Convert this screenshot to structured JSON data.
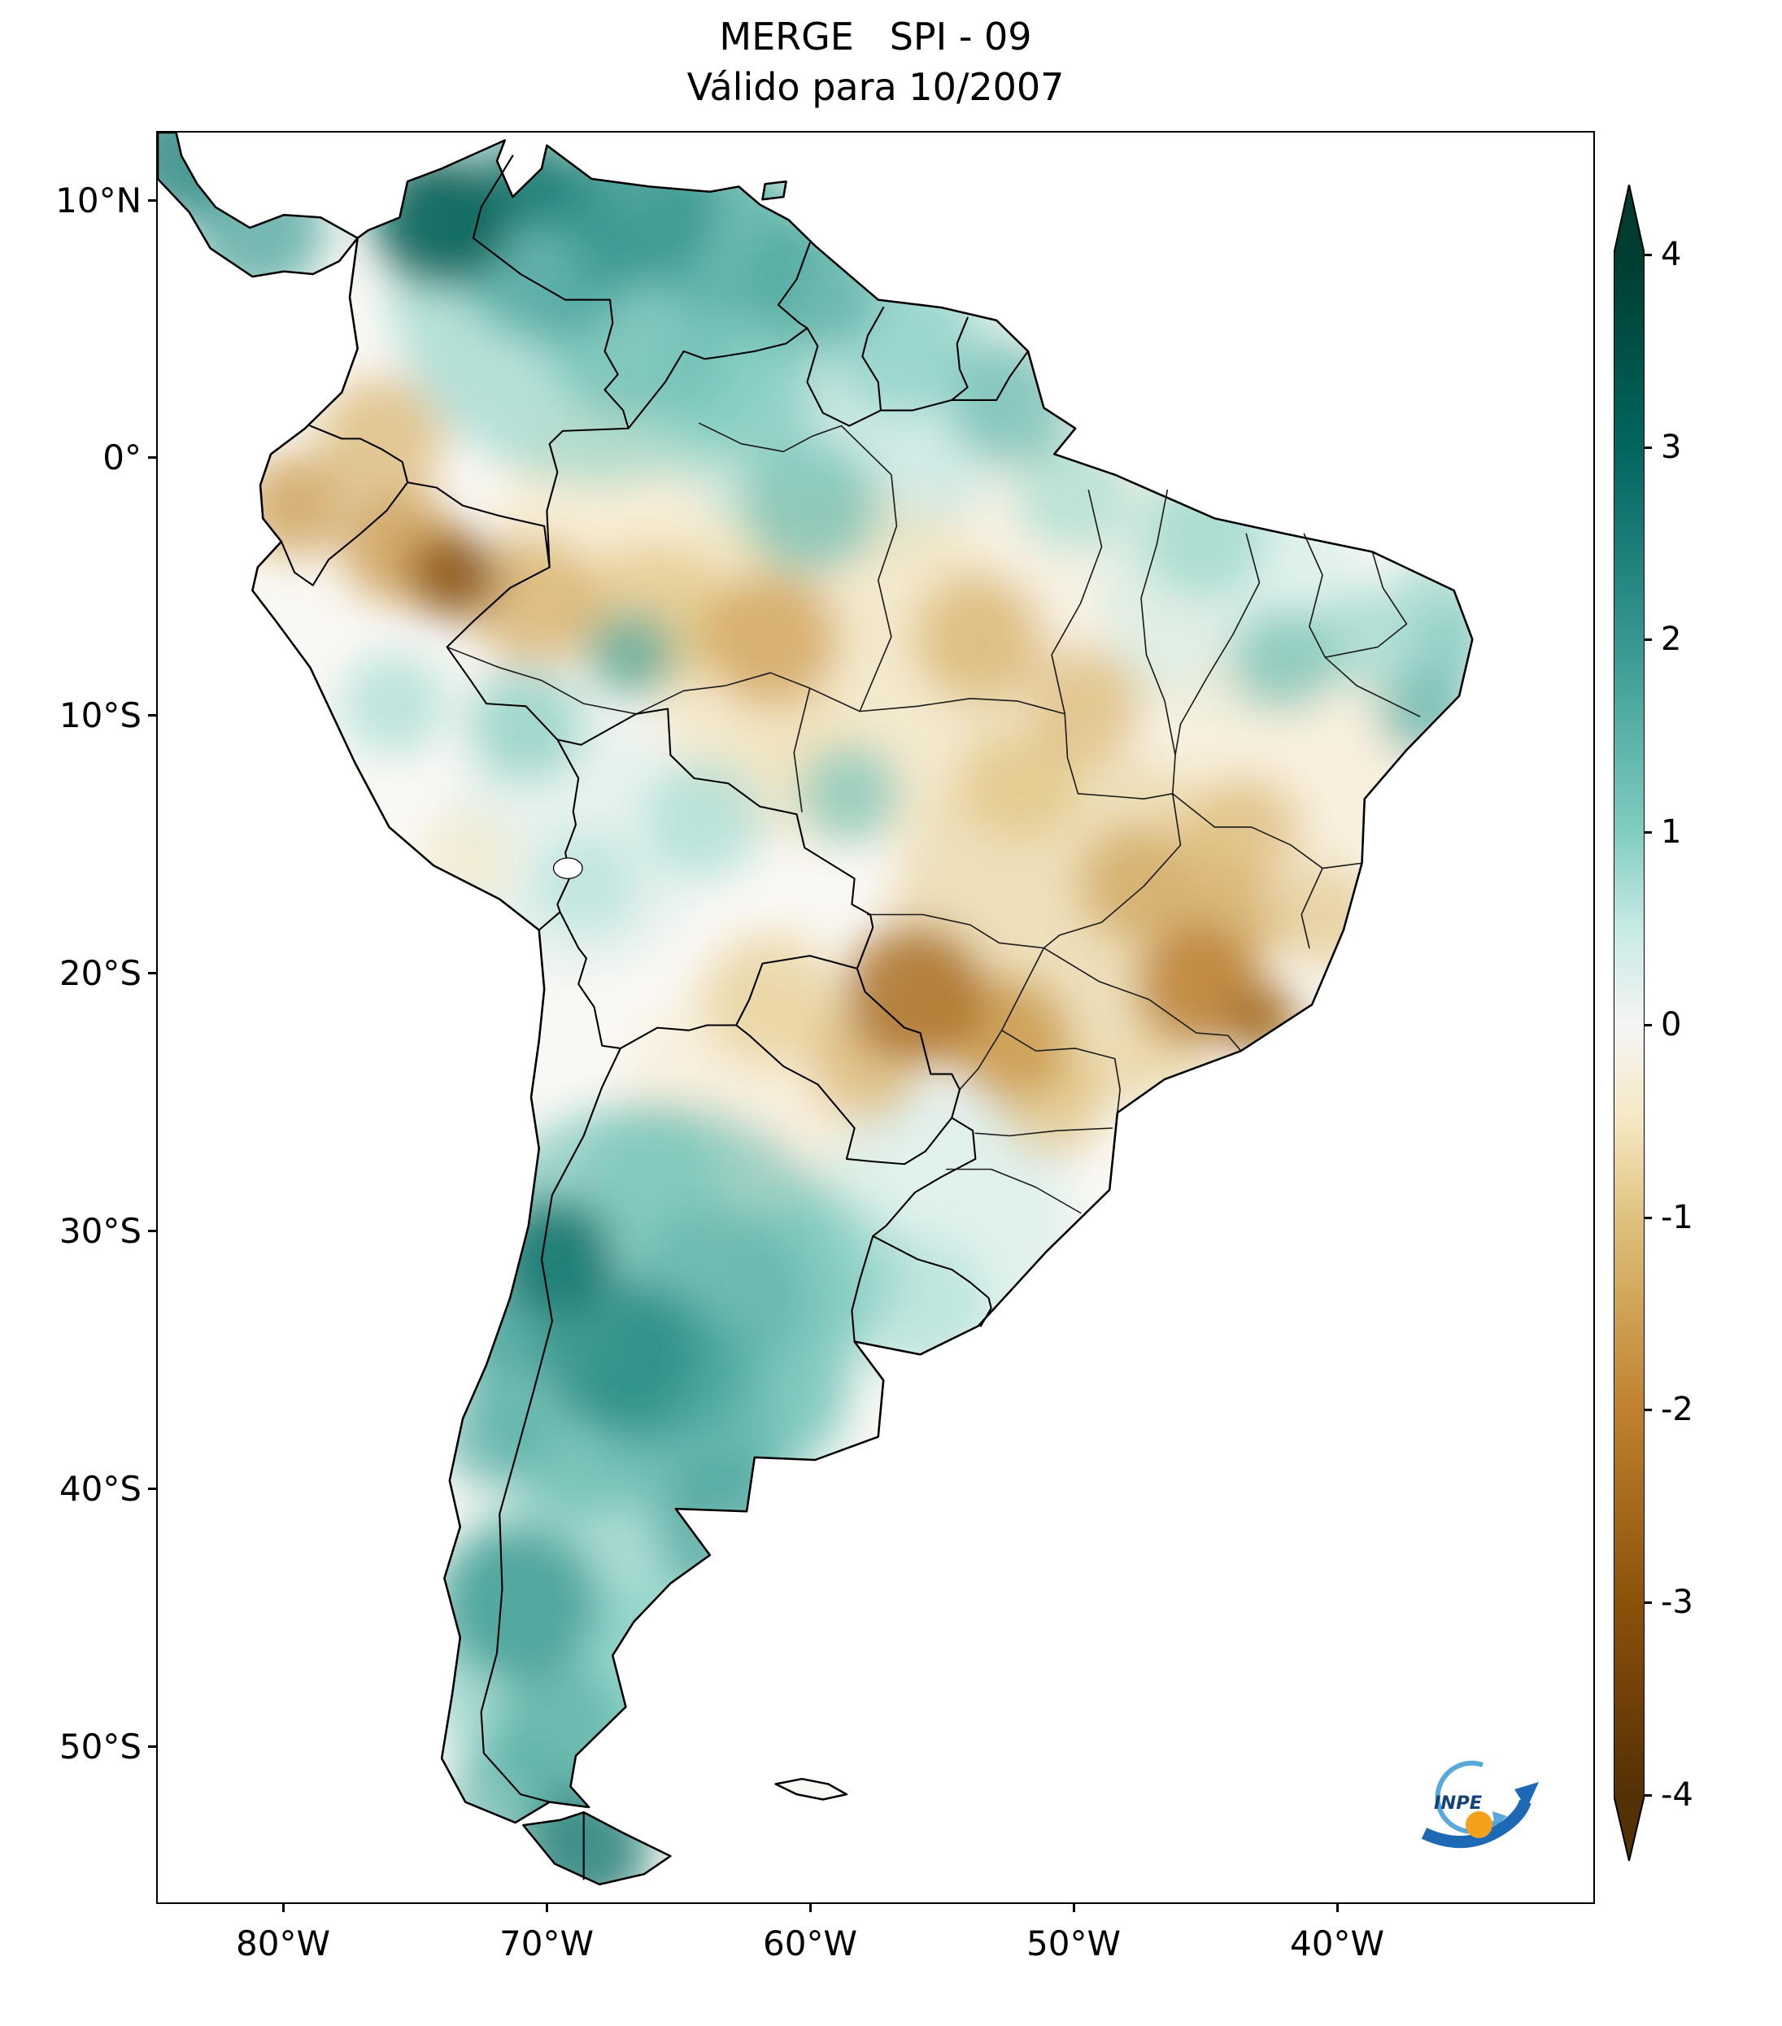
{
  "title": "MERGE   SPI - 09",
  "subtitle": "Válido para 10/2007",
  "axes": {
    "lat_ticks": [
      "10°N",
      "0°",
      "10°S",
      "20°S",
      "30°S",
      "40°S",
      "50°S"
    ],
    "lon_ticks": [
      "80°W",
      "70°W",
      "60°W",
      "50°W",
      "40°W"
    ]
  },
  "colorbar": {
    "ticks": [
      "4",
      "3",
      "2",
      "1",
      "0",
      "-1",
      "-2",
      "-3",
      "-4"
    ]
  },
  "logo": {
    "label": "INPE"
  },
  "chart_data": {
    "type": "heatmap",
    "title": "MERGE   SPI - 09",
    "subtitle": "Válido para 10/2007",
    "product": "MERGE",
    "index": "SPI-09",
    "valid_for": "10/2007",
    "region": "South America",
    "projection": "PlateCarree",
    "lon_range": [
      -84.8,
      -30.2
    ],
    "lat_range": [
      -56.1,
      12.7
    ],
    "x_ticks": [
      "80°W",
      "70°W",
      "60°W",
      "50°W",
      "40°W"
    ],
    "y_ticks": [
      "10°N",
      "0°",
      "10°S",
      "20°S",
      "30°S",
      "40°S",
      "50°S"
    ],
    "grid": false,
    "colorbar": {
      "range": [
        -4,
        4
      ],
      "ticks": [
        4,
        3,
        2,
        1,
        0,
        -1,
        -2,
        -3,
        -4
      ],
      "extend": "both",
      "colormap": "BrBG",
      "scale": [
        {
          "v": 4,
          "c": "#003c30"
        },
        {
          "v": 3,
          "c": "#01665e"
        },
        {
          "v": 2,
          "c": "#35978f"
        },
        {
          "v": 1,
          "c": "#80cdc1"
        },
        {
          "v": 0.5,
          "c": "#c7eae5"
        },
        {
          "v": 0,
          "c": "#f5f5f5"
        },
        {
          "v": -0.5,
          "c": "#f6e8c3"
        },
        {
          "v": -1,
          "c": "#dfc27d"
        },
        {
          "v": -2,
          "c": "#bf812d"
        },
        {
          "v": -3,
          "c": "#8c510a"
        },
        {
          "v": -4,
          "c": "#543005"
        }
      ]
    },
    "anomaly_regions": [
      {
        "name": "north-wash",
        "lon": -68,
        "lat": 7,
        "radius_deg": 8,
        "spi": 0.9
      },
      {
        "name": "guiana-wash",
        "lon": -59,
        "lat": 3,
        "radius_deg": 7,
        "spi": 0.6
      },
      {
        "name": "west-amazon-wash",
        "lon": -66,
        "lat": -3,
        "radius_deg": 6,
        "spi": -0.5
      },
      {
        "name": "south-amazon-wash",
        "lon": -59,
        "lat": -8,
        "radius_deg": 7,
        "spi": -0.6
      },
      {
        "name": "east-amazon-wash",
        "lon": -50,
        "lat": -5,
        "radius_deg": 6,
        "spi": -0.3
      },
      {
        "name": "maranhao-wash",
        "lon": -44,
        "lat": -5,
        "radius_deg": 5,
        "spi": 0.4
      },
      {
        "name": "central-brazil-wash",
        "lon": -50,
        "lat": -18,
        "radius_deg": 7,
        "spi": -0.8
      },
      {
        "name": "bahia-wash",
        "lon": -42,
        "lat": -12,
        "radius_deg": 5,
        "spi": -0.4
      },
      {
        "name": "argentina-wash",
        "lon": -66,
        "lat": -33,
        "radius_deg": 8,
        "spi": 1.2
      },
      {
        "name": "patagonia-wash",
        "lon": -69,
        "lat": -46,
        "radius_deg": 6,
        "spi": 1.0
      },
      {
        "name": "chaco-wash",
        "lon": -62,
        "lat": -25,
        "radius_deg": 5,
        "spi": -0.4
      },
      {
        "name": "altiplano-wash",
        "lon": -69,
        "lat": -15,
        "radius_deg": 5,
        "spi": 0.3
      },
      {
        "name": "rio-grande-wash",
        "lon": -55,
        "lat": -29.5,
        "radius_deg": 5,
        "spi": 0.4
      },
      {
        "name": "nw-venezuela",
        "lon": -74,
        "lat": 9.3,
        "radius_deg": 2.6,
        "spi": 3.2
      },
      {
        "name": "coro-coast",
        "lon": -70.5,
        "lat": 10.8,
        "radius_deg": 1.8,
        "spi": 2.6
      },
      {
        "name": "maracaibo-east",
        "lon": -70,
        "lat": 8,
        "radius_deg": 3.4,
        "spi": 1.8
      },
      {
        "name": "caracas-coast",
        "lon": -66.5,
        "lat": 9.8,
        "radius_deg": 3,
        "spi": 2.1
      },
      {
        "name": "ne-venezuela",
        "lon": -63,
        "lat": 8.5,
        "radius_deg": 3.2,
        "spi": 1.6
      },
      {
        "name": "orinoco",
        "lon": -66.5,
        "lat": 5,
        "radius_deg": 3.6,
        "spi": 1.3
      },
      {
        "name": "guyana-coast",
        "lon": -60,
        "lat": 6.8,
        "radius_deg": 2.6,
        "spi": 1.7
      },
      {
        "name": "suriname",
        "lon": -56.5,
        "lat": 4.5,
        "radius_deg": 2.8,
        "spi": 1.0
      },
      {
        "name": "amapa",
        "lon": -52.3,
        "lat": 2.2,
        "radius_deg": 2.4,
        "spi": 1.4
      },
      {
        "name": "north-amazon",
        "lon": -60,
        "lat": -1.8,
        "radius_deg": 2.6,
        "spi": 1.3
      },
      {
        "name": "rio-branco",
        "lon": -62.5,
        "lat": 2.5,
        "radius_deg": 2.8,
        "spi": 1.1
      },
      {
        "name": "south-colombia",
        "lon": -76.3,
        "lat": 0.8,
        "radius_deg": 2.4,
        "spi": -1.3
      },
      {
        "name": "ecuador-coast",
        "lon": -79.6,
        "lat": -1.8,
        "radius_deg": 2,
        "spi": -1.7
      },
      {
        "name": "nw-peru-amazon",
        "lon": -73.5,
        "lat": -4.5,
        "radius_deg": 1.7,
        "spi": -3.1
      },
      {
        "name": "napo",
        "lon": -75.6,
        "lat": -3.4,
        "radius_deg": 2.2,
        "spi": -1.8
      },
      {
        "name": "west-amazonas",
        "lon": -70.5,
        "lat": -5.5,
        "radius_deg": 2.5,
        "spi": -1.4
      },
      {
        "name": "mid-amazonas",
        "lon": -66,
        "lat": -6,
        "radius_deg": 2.8,
        "spi": -1.0
      },
      {
        "name": "madeira",
        "lon": -61.5,
        "lat": -7,
        "radius_deg": 2.6,
        "spi": -1.6
      },
      {
        "name": "lower-amazon",
        "lon": -53.5,
        "lat": -7,
        "radius_deg": 2.5,
        "spi": -1.3
      },
      {
        "name": "araguaia-north",
        "lon": -49.5,
        "lat": -9.5,
        "radius_deg": 2.2,
        "spi": -1.2
      },
      {
        "name": "purus-teal",
        "lon": -66.8,
        "lat": -7.6,
        "radius_deg": 1.7,
        "spi": 1.7
      },
      {
        "name": "acre-teal",
        "lon": -70.8,
        "lat": -10.3,
        "radius_deg": 2.2,
        "spi": 1.1
      },
      {
        "name": "peru-coast-teal",
        "lon": -75.8,
        "lat": -9.5,
        "radius_deg": 2,
        "spi": 0.8
      },
      {
        "name": "beni-teal",
        "lon": -64,
        "lat": -14,
        "radius_deg": 2.3,
        "spi": 0.8
      },
      {
        "name": "guapore-teal",
        "lon": -58.5,
        "lat": -13,
        "radius_deg": 1.9,
        "spi": 1.2
      },
      {
        "name": "rondonia-tan",
        "lon": -60.5,
        "lat": -10.5,
        "radius_deg": 2,
        "spi": -0.6
      },
      {
        "name": "xingu-tan",
        "lon": -52,
        "lat": -12.5,
        "radius_deg": 2.3,
        "spi": -1.0
      },
      {
        "name": "goias-brown",
        "lon": -47.5,
        "lat": -16.5,
        "radius_deg": 2.3,
        "spi": -1.5
      },
      {
        "name": "mato-grosso-sul-brown",
        "lon": -56,
        "lat": -20.8,
        "radius_deg": 2.7,
        "spi": -2.5
      },
      {
        "name": "parana-river-brown",
        "lon": -52.5,
        "lat": -22.5,
        "radius_deg": 2.4,
        "spi": -1.8
      },
      {
        "name": "minas-brown",
        "lon": -45.2,
        "lat": -20.5,
        "radius_deg": 2.4,
        "spi": -2.2
      },
      {
        "name": "rio-spot-brown",
        "lon": -42.8,
        "lat": -21.8,
        "radius_deg": 1.4,
        "spi": -2.7
      },
      {
        "name": "espinhaco-brown",
        "lon": -44,
        "lat": -18,
        "radius_deg": 2,
        "spi": -1.4
      },
      {
        "name": "bahia-interior",
        "lon": -43.5,
        "lat": -14.5,
        "radius_deg": 2.2,
        "spi": -1.2
      },
      {
        "name": "mucuri",
        "lon": -40.3,
        "lat": -17.8,
        "radius_deg": 2,
        "spi": -1.0
      },
      {
        "name": "chaco-brown",
        "lon": -61.5,
        "lat": -21,
        "radius_deg": 2.6,
        "spi": -0.9
      },
      {
        "name": "east-paraguay-brown",
        "lon": -57.8,
        "lat": -23.5,
        "radius_deg": 2.2,
        "spi": -1.3
      },
      {
        "name": "parana-state-brown",
        "lon": -50.8,
        "lat": -25,
        "radius_deg": 2.1,
        "spi": -1.1
      },
      {
        "name": "sao-paulo-coast",
        "lon": -46.5,
        "lat": -23.5,
        "radius_deg": 2,
        "spi": -0.6
      },
      {
        "name": "piaui-teal",
        "lon": -42,
        "lat": -7.8,
        "radius_deg": 2,
        "spi": 1.3
      },
      {
        "name": "cariri-teal",
        "lon": -38.8,
        "lat": -7,
        "radius_deg": 2,
        "spi": 0.9
      },
      {
        "name": "paraiba-coast-teal",
        "lon": -35.5,
        "lat": -7.3,
        "radius_deg": 1.5,
        "spi": 1.2
      },
      {
        "name": "sergipe-teal",
        "lon": -36.6,
        "lat": -9.8,
        "radius_deg": 1.8,
        "spi": 1.6
      },
      {
        "name": "rn-coast-teal",
        "lon": -36,
        "lat": -5.3,
        "radius_deg": 1.8,
        "spi": 0.9
      },
      {
        "name": "maranhao-coast-teal",
        "lon": -45,
        "lat": -3,
        "radius_deg": 2.4,
        "spi": 0.9
      },
      {
        "name": "marajo-teal",
        "lon": -50,
        "lat": -1.3,
        "radius_deg": 2.3,
        "spi": 0.8
      },
      {
        "name": "andes-cuyo-dark",
        "lon": -69.7,
        "lat": -31,
        "radius_deg": 2.3,
        "spi": 2.8
      },
      {
        "name": "mendoza-south",
        "lon": -67.3,
        "lat": -34.8,
        "radius_deg": 3,
        "spi": 2.2
      },
      {
        "name": "san-luis",
        "lon": -65.5,
        "lat": -35.5,
        "radius_deg": 3,
        "spi": 1.8
      },
      {
        "name": "cordoba",
        "lon": -63.5,
        "lat": -32.5,
        "radius_deg": 3.4,
        "spi": 1.5
      },
      {
        "name": "entre-rios",
        "lon": -59.5,
        "lat": -31.5,
        "radius_deg": 3,
        "spi": 0.9
      },
      {
        "name": "uruguay-teal",
        "lon": -56,
        "lat": -33,
        "radius_deg": 2.8,
        "spi": 0.7
      },
      {
        "name": "buenos-aires-west",
        "lon": -61.5,
        "lat": -36.5,
        "radius_deg": 3,
        "spi": 1.1
      },
      {
        "name": "la-pampa",
        "lon": -64.5,
        "lat": -37.5,
        "radius_deg": 3.4,
        "spi": 1.4
      },
      {
        "name": "rio-negro-teal",
        "lon": -63,
        "lat": -41.5,
        "radius_deg": 2.8,
        "spi": 1.8
      },
      {
        "name": "neuquen",
        "lon": -69,
        "lat": -38.5,
        "radius_deg": 2.6,
        "spi": 1.3
      },
      {
        "name": "nw-patagonia",
        "lon": -71,
        "lat": -44.5,
        "radius_deg": 3,
        "spi": 2.0
      },
      {
        "name": "santa-cruz",
        "lon": -69.5,
        "lat": -49.5,
        "radius_deg": 2.6,
        "spi": 1.6
      },
      {
        "name": "magallanes",
        "lon": -71.5,
        "lat": -52,
        "radius_deg": 2.2,
        "spi": 1.5
      },
      {
        "name": "tierra-del-fuego",
        "lon": -68.5,
        "lat": -54,
        "radius_deg": 2.4,
        "spi": 2.6
      },
      {
        "name": "east-patagonia",
        "lon": -66.5,
        "lat": -46.5,
        "radius_deg": 2.6,
        "spi": 0.8
      },
      {
        "name": "chile-central",
        "lon": -71.3,
        "lat": -34,
        "radius_deg": 2,
        "spi": 1.8
      },
      {
        "name": "araucania",
        "lon": -72,
        "lat": -38,
        "radius_deg": 2,
        "spi": 1.6
      },
      {
        "name": "nw-argentina",
        "lon": -66,
        "lat": -28,
        "radius_deg": 2.6,
        "spi": 1.0
      },
      {
        "name": "arequipa-tan",
        "lon": -73,
        "lat": -15.5,
        "radius_deg": 1.8,
        "spi": -0.5
      },
      {
        "name": "titicaca-area",
        "lon": -68.5,
        "lat": -16.5,
        "radius_deg": 2,
        "spi": 0.7
      },
      {
        "name": "panama-teal",
        "lon": -81,
        "lat": 9,
        "radius_deg": 2.6,
        "spi": 1.8
      },
      {
        "name": "corner-teal",
        "lon": -84,
        "lat": 11.8,
        "radius_deg": 2.4,
        "spi": 2.4
      }
    ]
  }
}
